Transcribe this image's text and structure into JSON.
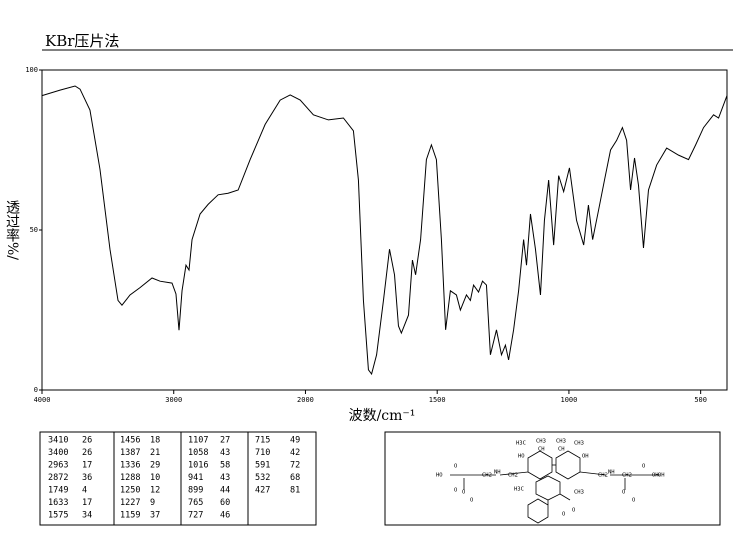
{
  "chart_data": {
    "type": "line",
    "title": "KBr压片法",
    "xlabel": "波数/cm⁻¹",
    "ylabel": "透过率%/",
    "xlim": [
      4000,
      400
    ],
    "ylim": [
      0,
      100
    ],
    "xticks": [
      4000,
      3000,
      2000,
      1500,
      1000,
      500
    ],
    "yticks": [
      0,
      50,
      100
    ],
    "grid": false,
    "color": "#000000",
    "x": [
      4000,
      3863,
      3749,
      3711,
      3636,
      3560,
      3484,
      3423,
      3393,
      3332,
      3256,
      3165,
      3104,
      3013,
      2983,
      2960,
      2937,
      2907,
      2884,
      2861,
      2800,
      2739,
      2663,
      2587,
      2511,
      2420,
      2306,
      2192,
      2116,
      2040,
      1970,
      1913,
      1856,
      1818,
      1799,
      1780,
      1761,
      1749,
      1730,
      1704,
      1681,
      1662,
      1647,
      1636,
      1609,
      1594,
      1582,
      1563,
      1541,
      1522,
      1503,
      1484,
      1468,
      1450,
      1427,
      1412,
      1389,
      1374,
      1362,
      1343,
      1328,
      1313,
      1298,
      1275,
      1256,
      1241,
      1229,
      1210,
      1191,
      1172,
      1161,
      1146,
      1127,
      1108,
      1093,
      1077,
      1058,
      1039,
      1020,
      998,
      971,
      944,
      926,
      910,
      888,
      865,
      842,
      819,
      797,
      781,
      766,
      751,
      736,
      717,
      698,
      667,
      629,
      584,
      546,
      519,
      489,
      451,
      432,
      400
    ],
    "values": [
      92,
      93.7,
      95,
      94,
      87.5,
      69,
      44,
      28,
      26.5,
      29.7,
      32,
      35,
      34,
      33.4,
      30,
      18.7,
      31,
      39,
      37.5,
      47,
      55,
      58,
      61,
      61.5,
      62.5,
      72,
      83,
      90.6,
      92.2,
      90.6,
      86,
      84.4,
      85,
      81,
      65.6,
      28,
      6.3,
      5,
      11,
      28,
      44,
      36,
      20,
      17.8,
      23.4,
      40.6,
      36,
      47,
      72,
      76.6,
      72,
      47,
      18.8,
      31,
      29.7,
      25,
      29.7,
      28,
      32.8,
      30.6,
      34,
      32.8,
      11,
      18.8,
      11,
      14,
      9.4,
      18.8,
      31,
      47,
      39,
      55,
      44,
      29.7,
      53,
      65.6,
      45.3,
      67,
      62,
      69.4,
      53,
      45.3,
      57.8,
      47,
      56,
      65.6,
      75,
      78,
      82,
      78,
      62.5,
      72.5,
      64,
      44.4,
      62.5,
      70.3,
      75.6,
      73.4,
      72,
      76.6,
      82,
      86,
      85,
      92
    ]
  },
  "peak_table": {
    "columns": [
      [
        [
          3410,
          26
        ],
        [
          3400,
          26
        ],
        [
          2963,
          17
        ],
        [
          2872,
          36
        ],
        [
          1749,
          4
        ],
        [
          1633,
          17
        ],
        [
          1575,
          34
        ]
      ],
      [
        [
          1456,
          18
        ],
        [
          1387,
          21
        ],
        [
          1336,
          29
        ],
        [
          1288,
          10
        ],
        [
          1250,
          12
        ],
        [
          1227,
          9
        ],
        [
          1159,
          37
        ]
      ],
      [
        [
          1107,
          27
        ],
        [
          1058,
          43
        ],
        [
          1016,
          58
        ],
        [
          941,
          43
        ],
        [
          899,
          44
        ],
        [
          765,
          60
        ],
        [
          727,
          46
        ]
      ],
      [
        [
          715,
          49
        ],
        [
          710,
          42
        ],
        [
          591,
          72
        ],
        [
          532,
          68
        ],
        [
          427,
          81
        ]
      ]
    ]
  },
  "structure": {
    "labels": [
      "H3C",
      "CH3",
      "CH3",
      "CH3",
      "HO",
      "CH",
      "CH",
      "OH",
      "HO",
      "O",
      "CH2",
      "NH",
      "CH2",
      "O",
      "OH",
      "CH2",
      "NH",
      "CH2",
      "O",
      "OH",
      "O",
      "O",
      "O",
      "O",
      "H3C",
      "CH3",
      "O",
      "O"
    ]
  }
}
